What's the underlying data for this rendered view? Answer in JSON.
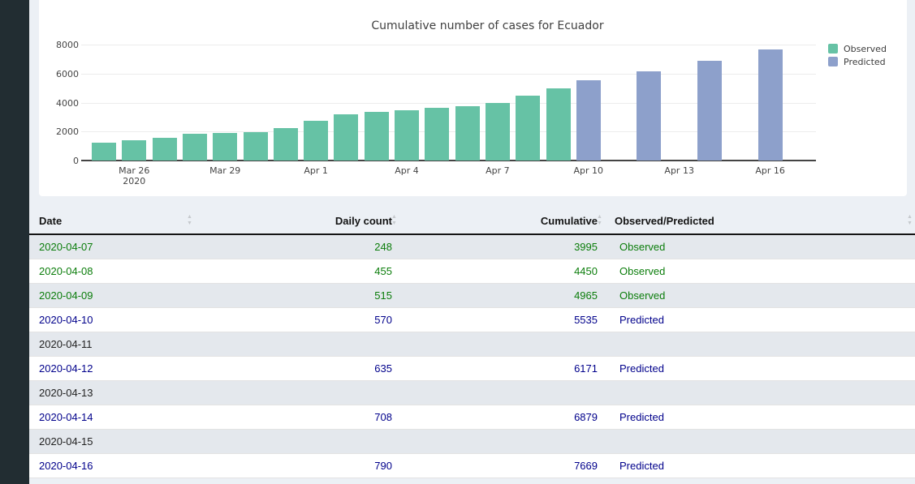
{
  "app": {
    "sidebar_color": "#222d32",
    "page_bg": "#ecf0f5"
  },
  "chart_data": {
    "type": "bar",
    "title": "Cumulative number of cases for Ecuador",
    "xlabel": "",
    "ylabel": "",
    "x_start": "2020-03-25",
    "x_end": "2020-04-16",
    "ylim": [
      0,
      8000
    ],
    "y_ticks": [
      0,
      2000,
      4000,
      6000,
      8000
    ],
    "grid": true,
    "legend_position": "right",
    "legend": [
      {
        "name": "Observed",
        "color": "#66c2a5"
      },
      {
        "name": "Predicted",
        "color": "#8da0cb"
      }
    ],
    "x_ticks": [
      {
        "date": "2020-03-26",
        "label": "Mar 26",
        "sub": "2020"
      },
      {
        "date": "2020-03-29",
        "label": "Mar 29",
        "sub": ""
      },
      {
        "date": "2020-04-01",
        "label": "Apr 1",
        "sub": ""
      },
      {
        "date": "2020-04-04",
        "label": "Apr 4",
        "sub": ""
      },
      {
        "date": "2020-04-07",
        "label": "Apr 7",
        "sub": ""
      },
      {
        "date": "2020-04-10",
        "label": "Apr 10",
        "sub": ""
      },
      {
        "date": "2020-04-13",
        "label": "Apr 13",
        "sub": ""
      },
      {
        "date": "2020-04-16",
        "label": "Apr 16",
        "sub": ""
      }
    ],
    "points": [
      {
        "date": "2020-03-25",
        "value": 1211,
        "series": "Observed"
      },
      {
        "date": "2020-03-26",
        "value": 1403,
        "series": "Observed"
      },
      {
        "date": "2020-03-27",
        "value": 1595,
        "series": "Observed"
      },
      {
        "date": "2020-03-28",
        "value": 1823,
        "series": "Observed"
      },
      {
        "date": "2020-03-29",
        "value": 1890,
        "series": "Observed"
      },
      {
        "date": "2020-03-30",
        "value": 1962,
        "series": "Observed"
      },
      {
        "date": "2020-03-31",
        "value": 2240,
        "series": "Observed"
      },
      {
        "date": "2020-04-01",
        "value": 2748,
        "series": "Observed"
      },
      {
        "date": "2020-04-02",
        "value": 3163,
        "series": "Observed"
      },
      {
        "date": "2020-04-03",
        "value": 3368,
        "series": "Observed"
      },
      {
        "date": "2020-04-04",
        "value": 3465,
        "series": "Observed"
      },
      {
        "date": "2020-04-05",
        "value": 3646,
        "series": "Observed"
      },
      {
        "date": "2020-04-06",
        "value": 3747,
        "series": "Observed"
      },
      {
        "date": "2020-04-07",
        "value": 3995,
        "series": "Observed"
      },
      {
        "date": "2020-04-08",
        "value": 4450,
        "series": "Observed"
      },
      {
        "date": "2020-04-09",
        "value": 4965,
        "series": "Observed"
      },
      {
        "date": "2020-04-10",
        "value": 5535,
        "series": "Predicted"
      },
      {
        "date": "2020-04-12",
        "value": 6171,
        "series": "Predicted"
      },
      {
        "date": "2020-04-14",
        "value": 6879,
        "series": "Predicted"
      },
      {
        "date": "2020-04-16",
        "value": 7669,
        "series": "Predicted"
      }
    ]
  },
  "table": {
    "columns": [
      {
        "label": "Date",
        "align": "left"
      },
      {
        "label": "Daily count",
        "align": "right"
      },
      {
        "label": "Cumulative",
        "align": "right"
      },
      {
        "label": "Observed/Predicted",
        "align": "left"
      }
    ],
    "rows": [
      {
        "date": "2020-04-07",
        "daily_count": "248",
        "cumulative": "3995",
        "status": "Observed"
      },
      {
        "date": "2020-04-08",
        "daily_count": "455",
        "cumulative": "4450",
        "status": "Observed"
      },
      {
        "date": "2020-04-09",
        "daily_count": "515",
        "cumulative": "4965",
        "status": "Observed"
      },
      {
        "date": "2020-04-10",
        "daily_count": "570",
        "cumulative": "5535",
        "status": "Predicted"
      },
      {
        "date": "2020-04-11",
        "daily_count": "",
        "cumulative": "",
        "status": ""
      },
      {
        "date": "2020-04-12",
        "daily_count": "635",
        "cumulative": "6171",
        "status": "Predicted"
      },
      {
        "date": "2020-04-13",
        "daily_count": "",
        "cumulative": "",
        "status": ""
      },
      {
        "date": "2020-04-14",
        "daily_count": "708",
        "cumulative": "6879",
        "status": "Predicted"
      },
      {
        "date": "2020-04-15",
        "daily_count": "",
        "cumulative": "",
        "status": ""
      },
      {
        "date": "2020-04-16",
        "daily_count": "790",
        "cumulative": "7669",
        "status": "Predicted"
      }
    ],
    "status_colors": {
      "Observed": "#0b7d0b",
      "Predicted": "#00008b",
      "": "#222222"
    }
  }
}
